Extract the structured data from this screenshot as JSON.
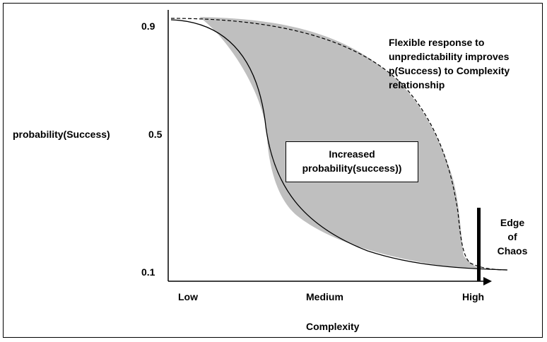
{
  "y_axis": {
    "label": "probability(Success)",
    "ticks": [
      "0.9",
      "0.5",
      "0.1"
    ]
  },
  "x_axis": {
    "label": "Complexity",
    "ticks": [
      "Low",
      "Medium",
      "High"
    ]
  },
  "annotations": {
    "flexible_line1": "Flexible response to",
    "flexible_line2": "unpredictability improves",
    "flexible_line3": "p(Success) to Complexity",
    "flexible_line4": "relationship",
    "increased_line1": "Increased",
    "increased_line2": "probability(success))",
    "edge_line1": "Edge",
    "edge_line2": "of",
    "edge_line3": "Chaos"
  },
  "colors": {
    "region_fill": "#bfbfbf",
    "line": "#000000"
  }
}
